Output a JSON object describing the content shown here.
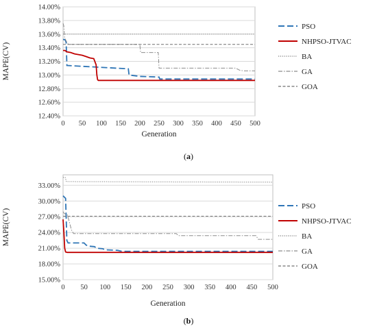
{
  "series_styles": [
    {
      "name": "PSO",
      "color": "#2E75B6",
      "dash": "9 4",
      "width": 1.8
    },
    {
      "name": "NHPSO-JTVAC",
      "color": "#C00000",
      "dash": "",
      "width": 1.8
    },
    {
      "name": "BA",
      "color": "#7F7F7F",
      "dash": "1.2 1.6",
      "width": 1.0
    },
    {
      "name": "GA",
      "color": "#8C8C8C",
      "dash": "6 2 1.5 2",
      "width": 1.0
    },
    {
      "name": "GOA",
      "color": "#6F6F6F",
      "dash": "4 2.5",
      "width": 1.0
    }
  ],
  "chart_data": [
    {
      "type": "line",
      "label": "(a)",
      "caption_letter": "a",
      "xlabel": "Generation",
      "ylabel": "MAPE(CV)",
      "xlim": [
        0,
        500
      ],
      "ylim": [
        12.4,
        14.0
      ],
      "x_ticks": [
        0,
        50,
        100,
        150,
        200,
        250,
        300,
        350,
        400,
        450,
        500
      ],
      "y_ticks": [
        12.4,
        12.6,
        12.8,
        13.0,
        13.2,
        13.4,
        13.6,
        13.8,
        14.0
      ],
      "y_tick_labels": [
        "12.40%",
        "12.60%",
        "12.80%",
        "13.00%",
        "13.20%",
        "13.40%",
        "13.60%",
        "13.80%",
        "14.00%"
      ],
      "grid": "horizontal",
      "legend_position": "right",
      "series": [
        {
          "name": "PSO",
          "x": [
            0,
            5,
            8,
            10,
            170,
            172,
            200,
            250,
            252,
            500
          ],
          "y": [
            13.52,
            13.52,
            13.48,
            13.14,
            13.09,
            13.0,
            12.98,
            12.97,
            12.94,
            12.94
          ]
        },
        {
          "name": "NHPSO-JTVAC",
          "x": [
            0,
            5,
            10,
            20,
            30,
            40,
            50,
            60,
            70,
            80,
            86,
            88,
            90,
            92,
            500
          ],
          "y": [
            13.36,
            13.36,
            13.34,
            13.33,
            13.31,
            13.3,
            13.29,
            13.27,
            13.25,
            13.24,
            13.15,
            13.0,
            12.93,
            12.92,
            12.92
          ]
        },
        {
          "name": "BA",
          "x": [
            0,
            500
          ],
          "y": [
            13.6,
            13.6
          ]
        },
        {
          "name": "GA",
          "x": [
            0,
            2,
            4,
            8,
            12,
            15,
            200,
            202,
            248,
            250,
            450,
            460,
            470,
            500
          ],
          "y": [
            13.76,
            13.72,
            13.55,
            13.5,
            13.46,
            13.45,
            13.45,
            13.33,
            13.33,
            13.1,
            13.1,
            13.07,
            13.06,
            13.06
          ]
        },
        {
          "name": "GOA",
          "x": [
            0,
            3,
            500
          ],
          "y": [
            13.45,
            13.45,
            13.45
          ]
        }
      ]
    },
    {
      "type": "line",
      "label": "(b)",
      "caption_letter": "b",
      "xlabel": "Generation",
      "ylabel": "MAPE(CV)",
      "xlim": [
        0,
        500
      ],
      "ylim": [
        15.0,
        35.0
      ],
      "x_ticks": [
        0,
        50,
        100,
        150,
        200,
        250,
        300,
        350,
        400,
        450,
        500
      ],
      "y_ticks": [
        15,
        18,
        21,
        24,
        27,
        30,
        33
      ],
      "y_tick_labels": [
        "15.00%",
        "18.00%",
        "21.00%",
        "24.00%",
        "27.00%",
        "30.00%",
        "33.00%"
      ],
      "grid": "horizontal",
      "legend_position": "right",
      "series": [
        {
          "name": "PSO",
          "x": [
            0,
            6,
            9,
            12,
            50,
            55,
            60,
            75,
            80,
            95,
            100,
            130,
            140,
            500
          ],
          "y": [
            31.0,
            30.5,
            22.5,
            22.0,
            22.0,
            21.6,
            21.4,
            21.3,
            21.0,
            20.9,
            20.7,
            20.6,
            20.4,
            20.4
          ]
        },
        {
          "name": "NHPSO-JTVAC",
          "x": [
            0,
            2,
            4,
            6,
            10,
            500
          ],
          "y": [
            26.5,
            24.0,
            21.0,
            20.3,
            20.2,
            20.2
          ]
        },
        {
          "name": "BA",
          "x": [
            0,
            5,
            8,
            500
          ],
          "y": [
            34.5,
            34.5,
            33.7,
            33.6
          ]
        },
        {
          "name": "GA",
          "x": [
            0,
            3,
            10,
            15,
            20,
            25,
            270,
            275,
            460,
            465,
            500
          ],
          "y": [
            28.0,
            27.6,
            27.4,
            26.0,
            24.5,
            23.8,
            23.8,
            23.4,
            23.4,
            22.7,
            22.7
          ]
        },
        {
          "name": "GOA",
          "x": [
            0,
            500
          ],
          "y": [
            27.1,
            27.1
          ]
        }
      ]
    }
  ]
}
